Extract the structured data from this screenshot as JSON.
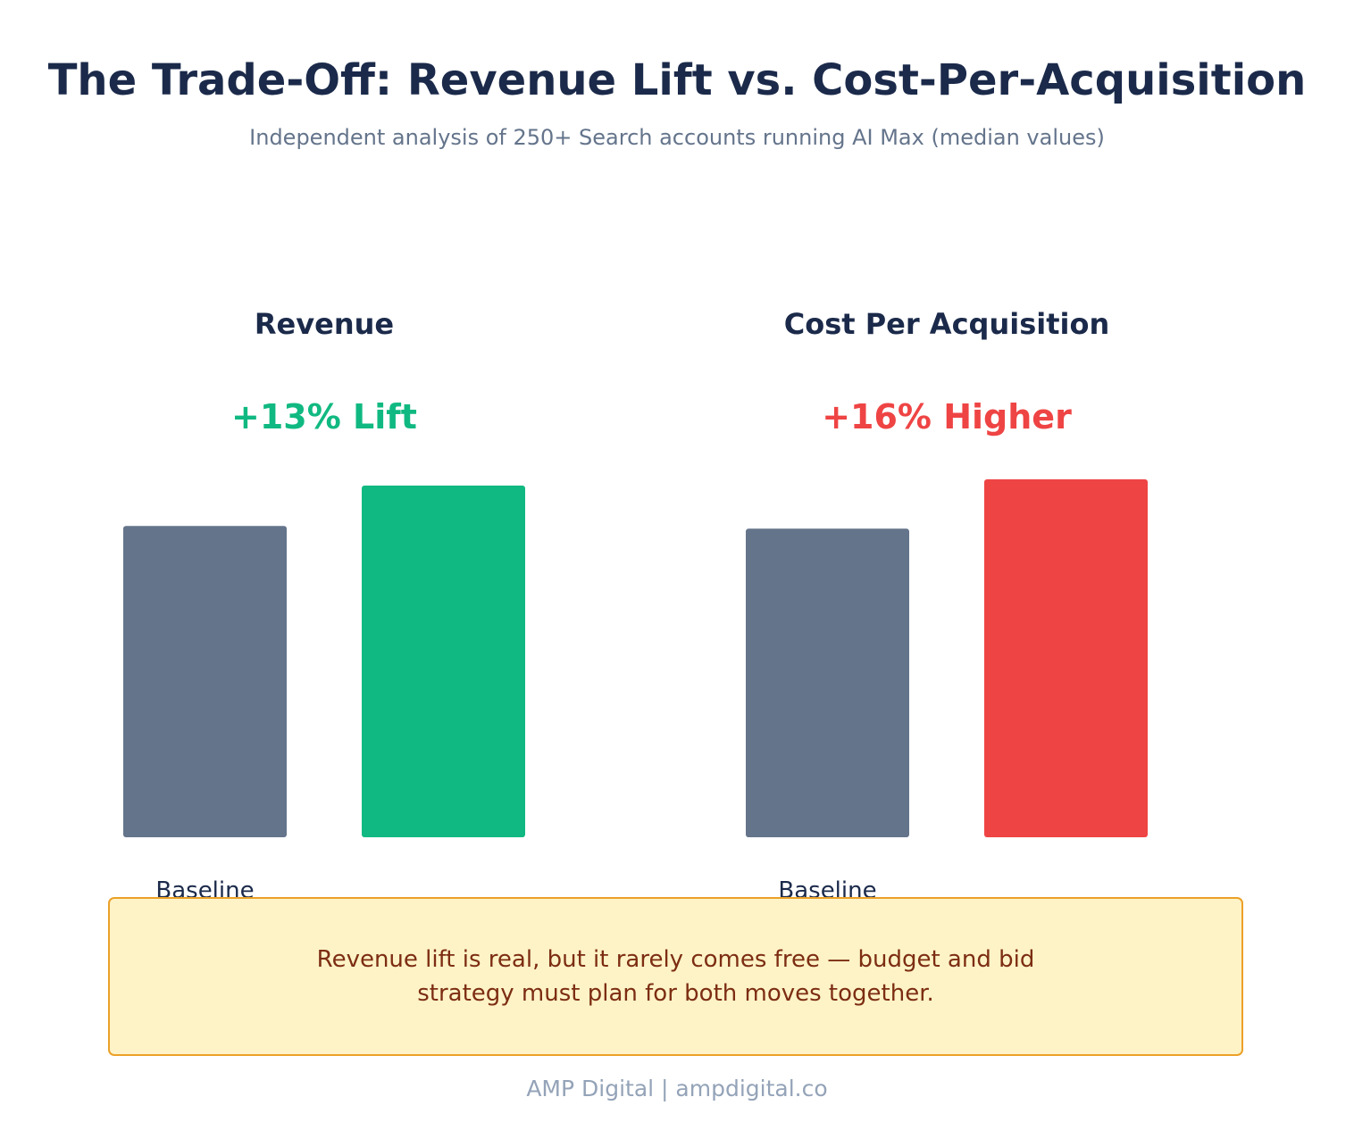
{
  "title": "The Trade-Off: Revenue Lift vs. Cost-Per-Acquisition",
  "subtitle": "Independent analysis of 250+ Search accounts running AI Max (median values)",
  "colors": {
    "baseline": "#64748b",
    "revenue": "#10b981",
    "cpa": "#ef4444",
    "heading": "#1b2a4a"
  },
  "chart_data": [
    {
      "type": "bar",
      "title": "Revenue",
      "annotation": "+13% Lift",
      "annotation_color": "#10b981",
      "categories": [
        "Baseline",
        ""
      ],
      "values": [
        100,
        113
      ],
      "colors": [
        "#64748b",
        "#10b981"
      ],
      "ylim": [
        0,
        115
      ],
      "grid": false
    },
    {
      "type": "bar",
      "title": "Cost Per Acquisition",
      "annotation": "+16% Higher",
      "annotation_color": "#ef4444",
      "categories": [
        "Baseline",
        ""
      ],
      "values": [
        100,
        116
      ],
      "colors": [
        "#64748b",
        "#ef4444"
      ],
      "ylim": [
        0,
        116
      ],
      "grid": false
    }
  ],
  "callout": {
    "text": "Revenue lift is real, but it rarely comes free — budget and bid strategy must plan for both moves together."
  },
  "footer": "AMP Digital | ampdigital.co"
}
